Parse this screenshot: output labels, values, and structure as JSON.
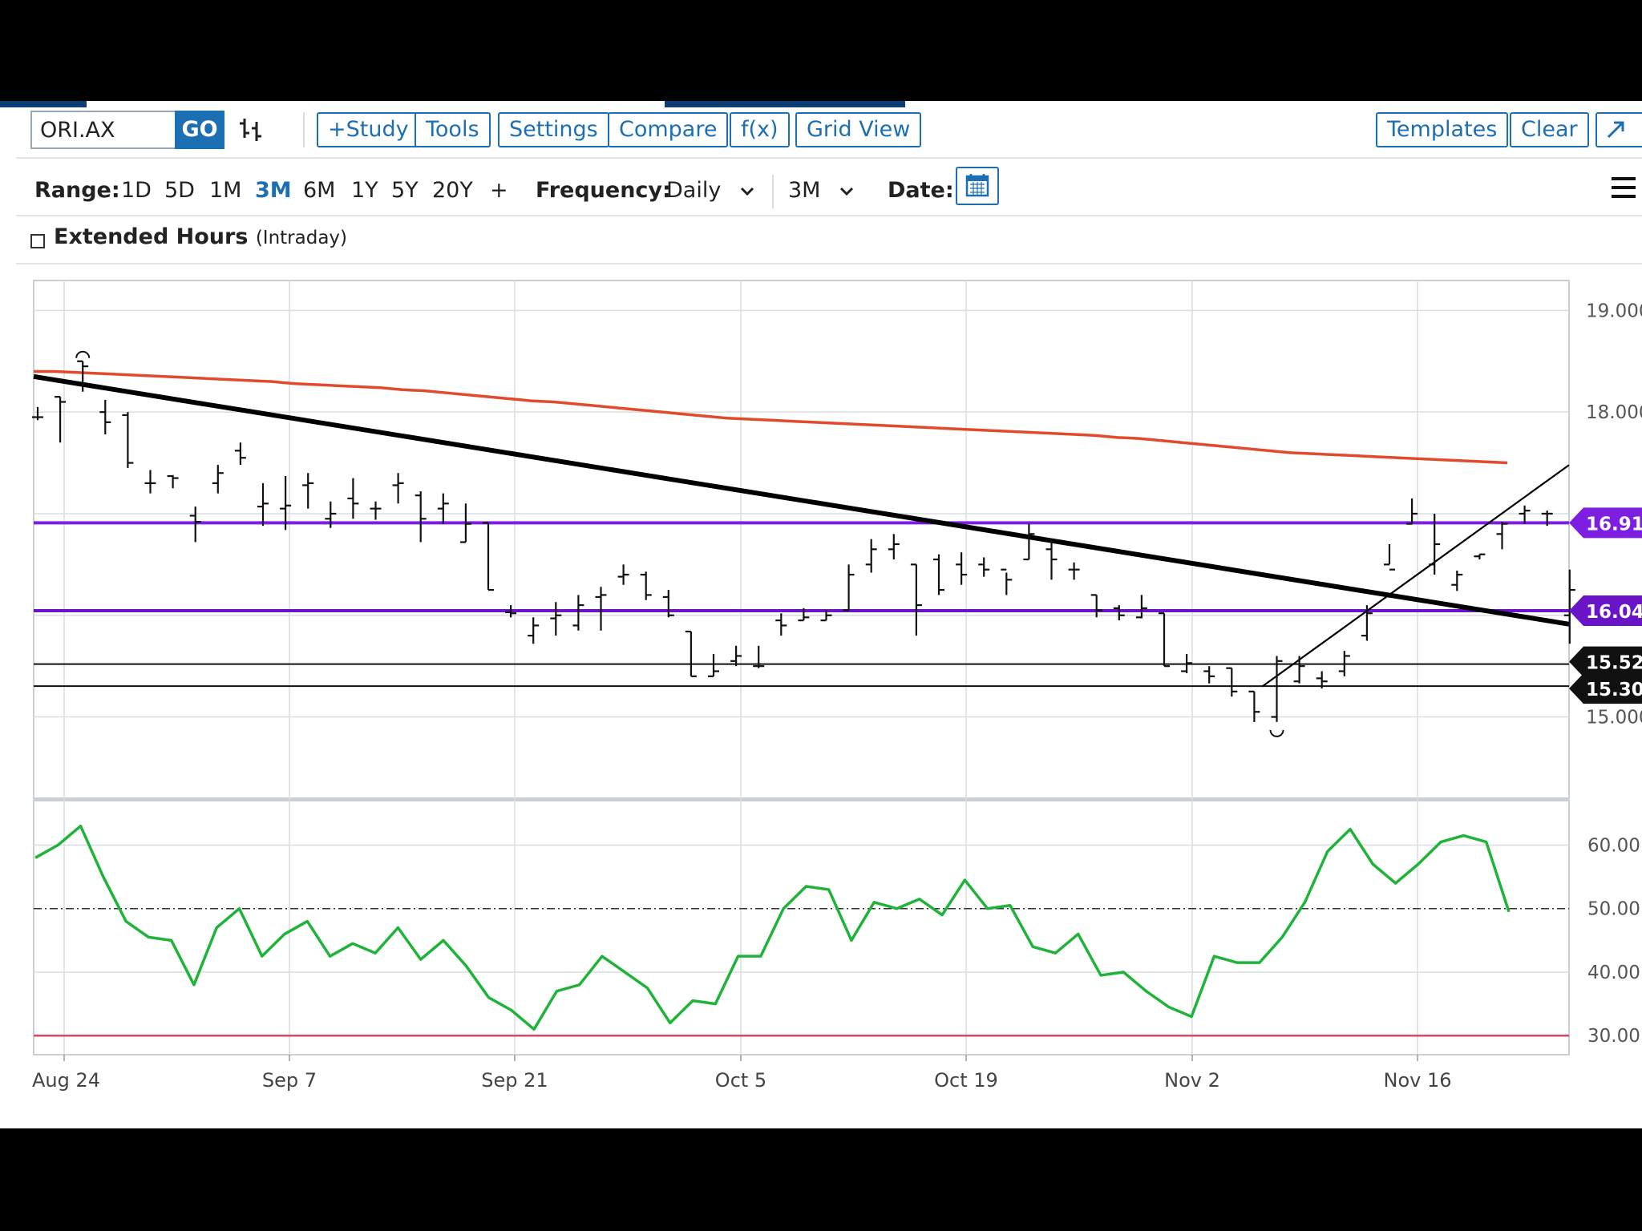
{
  "toolbar": {
    "symbol": "ORI.AX",
    "go_label": "GO",
    "buttons": {
      "study": "+Study",
      "tools": "Tools",
      "settings": "Settings",
      "compare": "Compare",
      "fx": "f(x)",
      "grid_view": "Grid View",
      "templates": "Templates",
      "clear": "Clear"
    },
    "expand_icon": "expand-arrow-icon",
    "bar_type_icon": "ohlc-bars-icon"
  },
  "range_bar": {
    "range_label": "Range:",
    "ranges": [
      "1D",
      "5D",
      "1M",
      "3M",
      "6M",
      "1Y",
      "5Y",
      "20Y",
      "+"
    ],
    "active_range": "3M",
    "frequency_label": "Frequency:",
    "frequency_value": "Daily",
    "period_value": "3M",
    "date_label": "Date:",
    "calendar_icon": "calendar-icon",
    "menu_icon": "hamburger-menu-icon"
  },
  "extended_hours": {
    "label": "Extended Hours",
    "sublabel": "(Intraday)",
    "checked": false
  },
  "chart_data": [
    {
      "type": "ohlc",
      "x_tick_labels": [
        "Aug 24",
        "Sep 7",
        "Sep 21",
        "Oct 5",
        "Oct 19",
        "Nov 2",
        "Nov 16"
      ],
      "y_tick_labels": [
        "19.000",
        "18.000",
        "15.000"
      ],
      "ylim": [
        14.2,
        19.2
      ],
      "grid": true,
      "bars": [
        [
          17.95,
          18.05,
          17.92,
          17.95
        ],
        [
          18.15,
          18.15,
          17.7,
          18.1
        ],
        [
          18.5,
          18.5,
          18.2,
          18.45
        ],
        [
          18.0,
          18.12,
          17.78,
          17.9
        ],
        [
          17.97,
          18.0,
          17.45,
          17.5
        ],
        [
          17.3,
          17.43,
          17.2,
          17.3
        ],
        [
          17.37,
          17.38,
          17.25,
          17.35
        ],
        [
          16.98,
          17.07,
          16.72,
          16.92
        ],
        [
          17.3,
          17.48,
          17.2,
          17.4
        ],
        [
          17.62,
          17.7,
          17.48,
          17.55
        ],
        [
          17.07,
          17.3,
          16.88,
          17.1
        ],
        [
          17.05,
          17.37,
          16.84,
          17.08
        ],
        [
          17.28,
          17.4,
          17.05,
          17.3
        ],
        [
          16.95,
          17.12,
          16.86,
          17.0
        ],
        [
          17.15,
          17.35,
          16.95,
          17.1
        ],
        [
          17.05,
          17.12,
          16.94,
          17.05
        ],
        [
          17.28,
          17.4,
          17.1,
          17.3
        ],
        [
          17.18,
          17.22,
          16.72,
          16.95
        ],
        [
          17.05,
          17.2,
          16.9,
          17.1
        ],
        [
          16.72,
          17.1,
          16.72,
          16.9
        ],
        [
          16.91,
          16.91,
          16.25,
          16.25
        ],
        [
          16.03,
          16.1,
          15.98,
          16.02
        ],
        [
          15.8,
          15.98,
          15.72,
          15.9
        ],
        [
          15.97,
          16.13,
          15.8,
          16.0
        ],
        [
          15.9,
          16.2,
          15.85,
          16.1
        ],
        [
          16.18,
          16.28,
          15.85,
          16.2
        ],
        [
          16.38,
          16.5,
          16.3,
          16.4
        ],
        [
          16.4,
          16.43,
          16.15,
          16.2
        ],
        [
          16.18,
          16.25,
          15.98,
          16.0
        ],
        [
          15.84,
          15.84,
          15.4,
          15.4
        ],
        [
          15.4,
          15.62,
          15.4,
          15.45
        ],
        [
          15.55,
          15.7,
          15.5,
          15.6
        ],
        [
          15.5,
          15.7,
          15.48,
          15.5
        ],
        [
          15.95,
          16.02,
          15.8,
          15.9
        ],
        [
          15.95,
          16.07,
          15.95,
          15.98
        ],
        [
          15.95,
          16.05,
          15.95,
          16.0
        ],
        [
          16.05,
          16.5,
          16.05,
          16.4
        ],
        [
          16.5,
          16.75,
          16.42,
          16.65
        ],
        [
          16.65,
          16.8,
          16.55,
          16.7
        ],
        [
          16.5,
          16.5,
          15.8,
          16.1
        ],
        [
          16.55,
          16.6,
          16.2,
          16.25
        ],
        [
          16.5,
          16.62,
          16.3,
          16.4
        ],
        [
          16.5,
          16.57,
          16.38,
          16.45
        ],
        [
          16.45,
          16.42,
          16.2,
          16.35
        ],
        [
          16.55,
          16.9,
          16.55,
          16.8
        ],
        [
          16.65,
          16.75,
          16.35,
          16.55
        ],
        [
          16.45,
          16.52,
          16.35,
          16.45
        ],
        [
          16.2,
          16.2,
          15.98,
          16.05
        ],
        [
          16.07,
          16.1,
          15.95,
          16.0
        ],
        [
          15.98,
          16.2,
          15.97,
          16.07
        ],
        [
          16.02,
          16.02,
          15.5,
          15.5
        ],
        [
          15.45,
          15.62,
          15.43,
          15.53
        ],
        [
          15.45,
          15.5,
          15.33,
          15.4
        ],
        [
          15.48,
          15.48,
          15.2,
          15.25
        ],
        [
          15.25,
          15.25,
          14.95,
          15.05
        ],
        [
          15.0,
          15.6,
          14.95,
          15.55
        ],
        [
          15.35,
          15.6,
          15.33,
          15.5
        ],
        [
          15.38,
          15.45,
          15.28,
          15.35
        ],
        [
          15.45,
          15.65,
          15.4,
          15.6
        ],
        [
          15.8,
          16.1,
          15.75,
          16.02
        ],
        [
          16.5,
          16.7,
          16.5,
          16.45
        ],
        [
          16.9,
          17.15,
          16.9,
          17.0
        ],
        [
          16.5,
          17.0,
          16.4,
          16.7
        ],
        [
          16.3,
          16.44,
          16.24,
          16.4
        ],
        [
          16.58,
          16.6,
          16.55,
          16.6
        ],
        [
          16.8,
          16.92,
          16.65,
          16.9
        ],
        [
          17.0,
          17.08,
          16.9,
          17.03
        ],
        [
          17.0,
          17.03,
          16.88,
          17.0
        ],
        [
          16.0,
          16.45,
          15.72,
          16.25
        ]
      ]
    },
    {
      "type": "line",
      "series": [
        {
          "values": [
            18.4,
            18.4,
            18.39,
            18.38,
            18.37,
            18.36,
            18.35,
            18.34,
            18.33,
            18.32,
            18.31,
            18.3,
            18.28,
            18.27,
            18.26,
            18.25,
            18.24,
            18.22,
            18.21,
            18.19,
            18.17,
            18.15,
            18.13,
            18.11,
            18.1,
            18.08,
            18.06,
            18.04,
            18.02,
            18.0,
            17.98,
            17.96,
            17.94,
            17.93,
            17.92,
            17.91,
            17.9,
            17.89,
            17.88,
            17.87,
            17.86,
            17.85,
            17.84,
            17.83,
            17.82,
            17.81,
            17.8,
            17.79,
            17.78,
            17.77,
            17.75,
            17.74,
            17.72,
            17.7,
            17.68,
            17.66,
            17.64,
            17.62,
            17.6,
            17.59,
            17.58,
            17.57,
            17.56,
            17.55,
            17.54,
            17.53,
            17.52,
            17.51,
            17.5
          ],
          "color": "#e24a2c"
        }
      ]
    },
    {
      "type": "line",
      "annotations": {
        "horizontal_levels": [
          {
            "value": 16.91,
            "label": "16.910",
            "color": "#7c1fe0"
          },
          {
            "value": 16.045,
            "label": "16.045",
            "color": "#6a14c8"
          },
          {
            "value": 15.52,
            "label": "15.520",
            "color": "#111111"
          },
          {
            "value": 15.303,
            "label": "15.303",
            "color": "#111111"
          }
        ],
        "trendlines": [
          {
            "from": [
              0,
              18.35
            ],
            "to": [
              68,
              15.85
            ],
            "width": "thick"
          },
          {
            "from": [
              54,
              15.3
            ],
            "to": [
              68,
              17.4
            ],
            "width": "thin"
          }
        ]
      }
    },
    {
      "type": "line",
      "y_tick_labels": [
        "60.00",
        "50.00",
        "40.00",
        "30.00"
      ],
      "ylim": [
        27,
        67
      ],
      "reference_lines": [
        {
          "value": 50,
          "style": "dash-dot"
        },
        {
          "value": 30,
          "color": "#e2455e"
        }
      ],
      "series": [
        {
          "values": [
            58,
            60,
            63,
            55,
            48,
            45.5,
            45,
            38,
            47,
            50,
            42.5,
            46,
            48,
            42.5,
            44.5,
            43,
            47,
            42,
            45,
            41,
            36,
            34,
            31,
            37,
            38,
            42.5,
            40,
            37.5,
            32,
            35.5,
            35,
            42.5,
            42.5,
            50,
            53.5,
            53,
            45,
            51,
            50,
            51.5,
            49,
            54.5,
            50,
            50.5,
            44,
            43,
            46,
            39.5,
            40,
            37,
            34.5,
            33,
            42.5,
            41.5,
            41.5,
            45.5,
            51,
            59,
            62.5,
            57,
            54,
            57,
            60.5,
            61.5,
            60.5,
            49.5
          ],
          "color": "#1fb33a"
        }
      ]
    }
  ]
}
